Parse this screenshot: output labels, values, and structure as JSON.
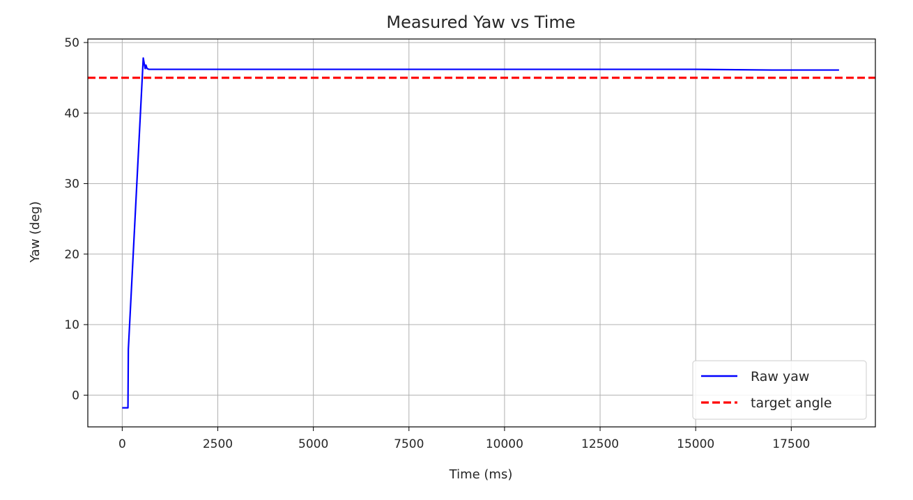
{
  "chart_data": {
    "type": "line",
    "title": "Measured Yaw vs Time",
    "xlabel": "Time (ms)",
    "ylabel": "Yaw (deg)",
    "xlim": [
      -900,
      19700
    ],
    "ylim": [
      -4.5,
      50.5
    ],
    "xticks": [
      0,
      2500,
      5000,
      7500,
      10000,
      12500,
      15000,
      17500
    ],
    "yticks": [
      0,
      10,
      20,
      30,
      40,
      50
    ],
    "grid": true,
    "legend_position": "bottom-right",
    "series": [
      {
        "name": "Raw yaw",
        "color": "#0000ff",
        "style": "solid",
        "points": [
          [
            0,
            -1.8
          ],
          [
            150,
            -1.8
          ],
          [
            160,
            6.5
          ],
          [
            550,
            47.8
          ],
          [
            600,
            46.3
          ],
          [
            620,
            46.8
          ],
          [
            650,
            46.3
          ],
          [
            700,
            46.2
          ],
          [
            2000,
            46.2
          ],
          [
            5000,
            46.2
          ],
          [
            10000,
            46.2
          ],
          [
            13000,
            46.2
          ],
          [
            15000,
            46.2
          ],
          [
            17000,
            46.1
          ],
          [
            18750,
            46.1
          ]
        ]
      },
      {
        "name": "target angle",
        "color": "#ff0000",
        "style": "dashed",
        "constant": 45
      }
    ]
  }
}
